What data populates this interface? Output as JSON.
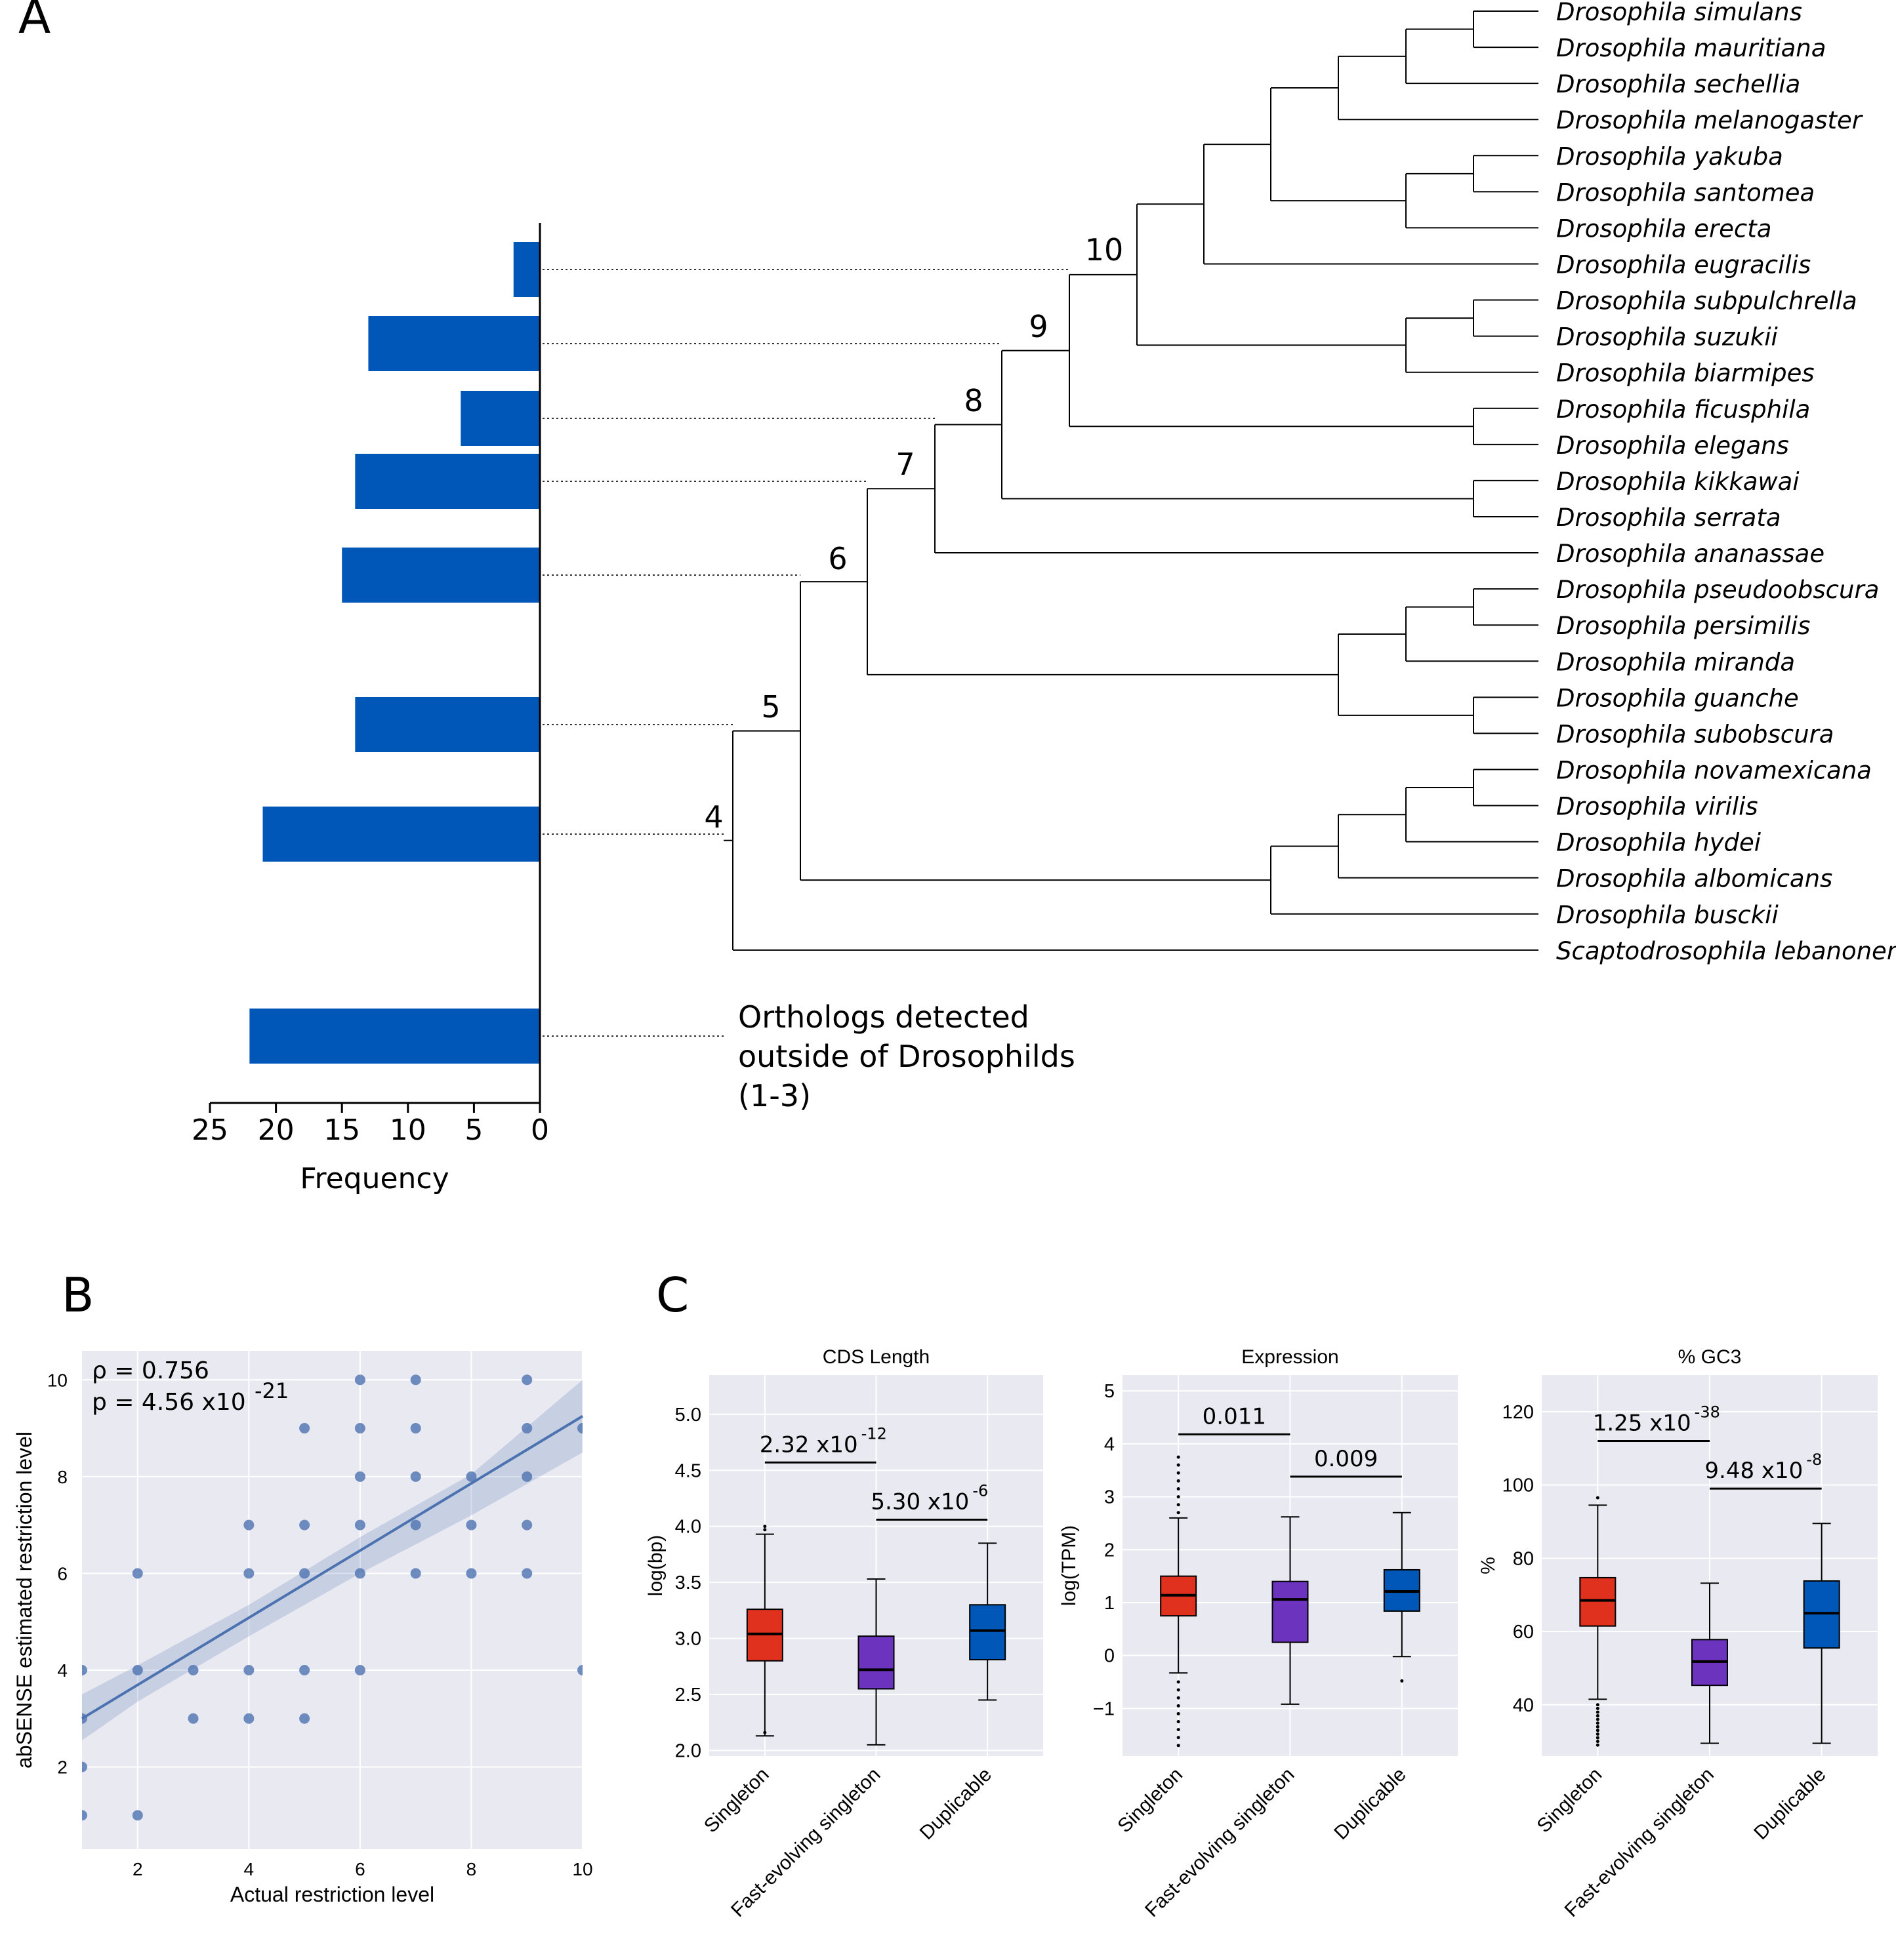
{
  "panel_labels": {
    "a": "A",
    "b": "B",
    "c": "C"
  },
  "colors": {
    "bar_blue": "#0057b7",
    "singleton": "#e0311f",
    "fast": "#6c33bf",
    "duplicable": "#0057b7",
    "seaborn_bg": "#e9e9f1",
    "scatter": "#4c72b0"
  },
  "chart_data": [
    {
      "id": "A",
      "type": "bar",
      "orientation": "horizontal",
      "categories": [
        "10",
        "9",
        "8",
        "7",
        "6",
        "5",
        "4",
        "Orthologs detected outside of Drosophilds (1-3)"
      ],
      "values": [
        2,
        13,
        6,
        14,
        15,
        14,
        21,
        22
      ],
      "xlabel": "Frequency",
      "xlim": [
        0,
        25
      ],
      "xticks": [
        "25",
        "20",
        "15",
        "10",
        "5",
        "0"
      ],
      "outgroup_label": [
        "Orthologs detected",
        "outside of Drosophilds",
        "(1-3)"
      ],
      "tree_nodes": [
        "4",
        "5",
        "6",
        "7",
        "8",
        "9",
        "10"
      ],
      "species": [
        "Drosophila simulans",
        "Drosophila mauritiana",
        "Drosophila sechellia",
        "Drosophila melanogaster",
        "Drosophila yakuba",
        "Drosophila santomea",
        "Drosophila erecta",
        "Drosophila eugracilis",
        "Drosophila subpulchrella",
        "Drosophila suzukii",
        "Drosophila biarmipes",
        "Drosophila ficusphila",
        "Drosophila elegans",
        "Drosophila kikkawai",
        "Drosophila serrata",
        "Drosophila ananassae",
        "Drosophila pseudoobscura",
        "Drosophila persimilis",
        "Drosophila miranda",
        "Drosophila guanche",
        "Drosophila subobscura",
        "Drosophila novamexicana",
        "Drosophila virilis",
        "Drosophila hydei",
        "Drosophila albomicans",
        "Drosophila busckii",
        "Scaptodrosophila lebanonensis"
      ]
    },
    {
      "id": "B",
      "type": "scatter",
      "xlabel": "Actual restriction level",
      "ylabel": "abSENSE estimated restriction level",
      "xlim": [
        1,
        10
      ],
      "ylim": [
        0.3,
        10.6
      ],
      "xticks": [
        "2",
        "4",
        "6",
        "8",
        "10"
      ],
      "yticks": [
        "2",
        "4",
        "6",
        "8",
        "10"
      ],
      "annotation_rho": "ρ = 0.756",
      "annotation_p": "p = 4.56 x10",
      "annotation_p_exp": "-21",
      "points": [
        [
          1,
          1
        ],
        [
          1,
          2
        ],
        [
          1,
          3
        ],
        [
          1,
          4
        ],
        [
          2,
          1
        ],
        [
          2,
          4
        ],
        [
          2,
          6
        ],
        [
          3,
          3
        ],
        [
          3,
          4
        ],
        [
          4,
          3
        ],
        [
          4,
          4
        ],
        [
          4,
          6
        ],
        [
          4,
          7
        ],
        [
          5,
          3
        ],
        [
          5,
          4
        ],
        [
          5,
          6
        ],
        [
          5,
          7
        ],
        [
          5,
          9
        ],
        [
          6,
          4
        ],
        [
          6,
          6
        ],
        [
          6,
          7
        ],
        [
          6,
          8
        ],
        [
          6,
          9
        ],
        [
          6,
          10
        ],
        [
          7,
          6
        ],
        [
          7,
          7
        ],
        [
          7,
          8
        ],
        [
          7,
          9
        ],
        [
          7,
          10
        ],
        [
          8,
          6
        ],
        [
          8,
          7
        ],
        [
          8,
          8
        ],
        [
          9,
          6
        ],
        [
          9,
          7
        ],
        [
          9,
          8
        ],
        [
          9,
          9
        ],
        [
          9,
          10
        ],
        [
          10,
          4
        ],
        [
          10,
          9
        ]
      ],
      "regression": {
        "x": [
          1,
          10
        ],
        "y": [
          3.0,
          9.25
        ]
      },
      "ci_band": {
        "x": [
          1,
          2,
          4,
          6,
          8,
          10
        ],
        "lower": [
          2.55,
          3.35,
          4.7,
          6.0,
          7.2,
          8.5
        ],
        "upper": [
          3.5,
          4.1,
          5.35,
          6.75,
          8.05,
          10.0
        ]
      }
    },
    {
      "id": "C1",
      "type": "box",
      "title": "CDS Length",
      "ylabel": "log(bp)",
      "ylim": [
        1.95,
        5.35
      ],
      "yticks": [
        "2.0",
        "2.5",
        "3.0",
        "3.5",
        "4.0",
        "4.5",
        "5.0"
      ],
      "categories": [
        "Singleton",
        "Fast-evolving singleton",
        "Duplicable"
      ],
      "boxes": [
        {
          "q1": 2.8,
          "median": 3.04,
          "q3": 3.26,
          "whislo": 2.13,
          "whishi": 3.93,
          "fliers": [
            2.16,
            4.0,
            3.97
          ]
        },
        {
          "q1": 2.55,
          "median": 2.72,
          "q3": 3.02,
          "whislo": 2.05,
          "whishi": 3.53,
          "fliers": []
        },
        {
          "q1": 2.81,
          "median": 3.07,
          "q3": 3.3,
          "whislo": 2.45,
          "whishi": 3.85,
          "fliers": []
        }
      ],
      "brackets": [
        {
          "from": 0,
          "to": 1,
          "y": 4.57,
          "label": "2.32 x10",
          "exp": "-12"
        },
        {
          "from": 1,
          "to": 2,
          "y": 4.06,
          "label": "5.30 x10",
          "exp": "-6"
        }
      ]
    },
    {
      "id": "C2",
      "type": "box",
      "title": "Expression",
      "ylabel": "log(TPM)",
      "ylim": [
        -1.9,
        5.3
      ],
      "yticks": [
        "−1",
        "0",
        "1",
        "2",
        "3",
        "4",
        "5"
      ],
      "categories": [
        "Singleton",
        "Fast-evolving singleton",
        "Duplicable"
      ],
      "boxes": [
        {
          "q1": 0.75,
          "median": 1.14,
          "q3": 1.5,
          "whislo": -0.33,
          "whishi": 2.6,
          "fliers": [
            -0.5,
            -0.65,
            -0.8,
            -0.95,
            -1.1,
            -1.25,
            -1.4,
            -1.55,
            -1.7,
            2.7,
            2.85,
            3.0,
            3.15,
            3.3,
            3.45,
            3.6,
            3.75
          ]
        },
        {
          "q1": 0.25,
          "median": 1.06,
          "q3": 1.4,
          "whislo": -0.92,
          "whishi": 2.62,
          "fliers": []
        },
        {
          "q1": 0.84,
          "median": 1.21,
          "q3": 1.62,
          "whislo": -0.02,
          "whishi": 2.7,
          "fliers": [
            -0.48
          ]
        }
      ],
      "brackets": [
        {
          "from": 0,
          "to": 1,
          "y": 4.18,
          "label": "0.011",
          "exp": ""
        },
        {
          "from": 1,
          "to": 2,
          "y": 3.38,
          "label": "0.009",
          "exp": ""
        }
      ]
    },
    {
      "id": "C3",
      "type": "box",
      "title": "% GC3",
      "ylabel": "%",
      "ylim": [
        26,
        130
      ],
      "yticks": [
        "40",
        "60",
        "80",
        "100",
        "120"
      ],
      "categories": [
        "Singleton",
        "Fast-evolving singleton",
        "Duplicable"
      ],
      "boxes": [
        {
          "q1": 61.5,
          "median": 68.5,
          "q3": 74.7,
          "whislo": 41.5,
          "whishi": 94.5,
          "fliers": [
            29,
            30,
            31,
            32,
            33,
            34,
            35,
            36,
            37,
            38,
            39,
            40,
            96.5
          ]
        },
        {
          "q1": 45.3,
          "median": 51.8,
          "q3": 57.8,
          "whislo": 29.5,
          "whishi": 73.2,
          "fliers": []
        },
        {
          "q1": 55.5,
          "median": 65.0,
          "q3": 73.8,
          "whislo": 29.5,
          "whishi": 89.5,
          "fliers": []
        }
      ],
      "brackets": [
        {
          "from": 0,
          "to": 1,
          "y": 112,
          "label": "1.25 x10",
          "exp": "-38"
        },
        {
          "from": 1,
          "to": 2,
          "y": 99,
          "label": "9.48 x10",
          "exp": "-8"
        }
      ]
    }
  ]
}
